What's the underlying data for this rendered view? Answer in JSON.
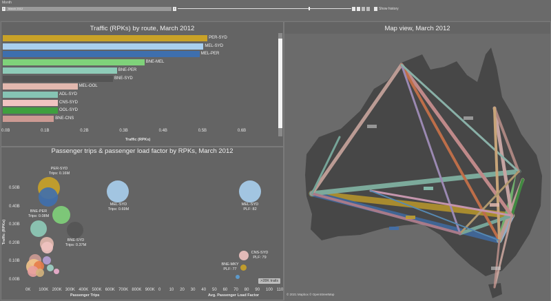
{
  "filter": {
    "label": "Month",
    "selected": "March 2012",
    "show_history": "Show history"
  },
  "bar_panel": {
    "title": "Traffic (RPKs) by route, March 2012",
    "axis_title": "Traffic (RPKs)",
    "ticks": [
      "0.0B",
      "0.1B",
      "0.2B",
      "0.3B",
      "0.4B",
      "0.5B",
      "0.6B"
    ]
  },
  "bubble_panel": {
    "title": "Passenger trips & passenger load factor by RPKs, March 2012",
    "y_axis_title": "Traffic (RPKs)",
    "y_ticks": [
      "0.50B",
      "0.40B",
      "0.30B",
      "0.20B",
      "0.10B",
      "0.00B"
    ],
    "x_ticks_trips": [
      "0K",
      "100K",
      "200K",
      "300K",
      "400K",
      "500K",
      "600K",
      "700K",
      "800K",
      "900K"
    ],
    "x_ticks_plf": [
      "0",
      "10",
      "20",
      "30",
      "40",
      "50",
      "60",
      "70",
      "80",
      "90",
      "100",
      "110"
    ],
    "x_title_trips": "Passenger Trips",
    "x_title_plf": "Avg. Passenger Load Factor",
    "badge": ">28K trails",
    "labels": {
      "per_syd": {
        "name": "PER-SYD",
        "val": "Trips: 0.16M"
      },
      "mel_syd_trips": {
        "name": "MEL-SYD",
        "val": "Trips: 0.69M"
      },
      "mel_syd_plf": {
        "name": "MEL-SYD",
        "val": "PLF: 82"
      },
      "bne_per": {
        "name": "BNE-PER",
        "val": "Trips: 0.08M"
      },
      "bne_syd": {
        "name": "BNE-SYD",
        "val": "Trips: 0.37M"
      },
      "cns_syd": {
        "name": "CNS-SYD",
        "val": "PLF: 79"
      },
      "bne_mky": {
        "name": "BNE-MKY",
        "val": "PLF: 77"
      }
    }
  },
  "map_panel": {
    "title": "Map view, March 2012",
    "attribution": "© 2021 Mapbox © OpenStreetMap"
  },
  "chart_data": {
    "type": "bar",
    "title": "Traffic (RPKs) by route, March 2012",
    "xlabel": "Traffic (RPKs)",
    "categories": [
      "PER-SYD",
      "MEL-SYD",
      "MEL-PER",
      "BNE-MEL",
      "BNE-PER",
      "BNE-SYD",
      "MEL-OOL",
      "ADL-SYD",
      "CNS-SYD",
      "OOL-SYD",
      "BNE-CNS"
    ],
    "values": [
      0.52,
      0.51,
      0.5,
      0.36,
      0.29,
      0.28,
      0.19,
      0.14,
      0.14,
      0.14,
      0.13
    ],
    "colors": [
      "#c9a227",
      "#a9cfee",
      "#3e6fae",
      "#7fd27a",
      "#8ecbb8",
      "#545454",
      "#e2b8ae",
      "#86c4b4",
      "#f0c3c1",
      "#3f9f3f",
      "#cc9a93"
    ],
    "xlim": [
      0,
      0.7
    ]
  }
}
